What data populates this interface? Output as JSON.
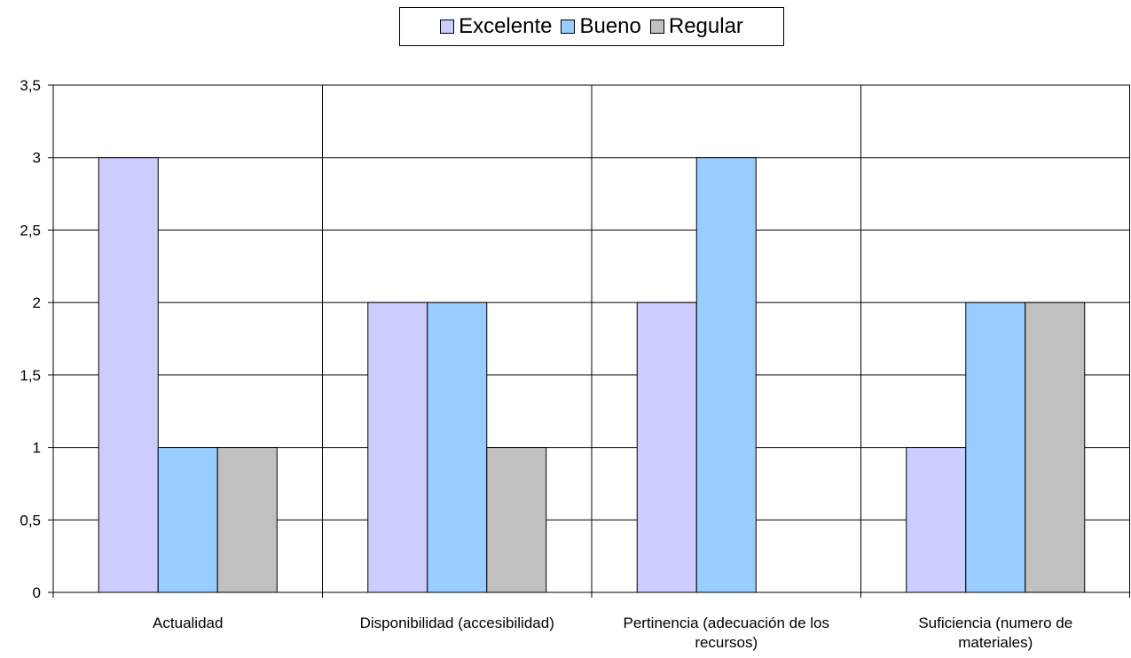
{
  "chart_data": {
    "type": "bar",
    "title": "",
    "xlabel": "",
    "ylabel": "",
    "ylim": [
      0,
      3.5
    ],
    "yticks": [
      "0",
      "0,5",
      "1",
      "1,5",
      "2",
      "2,5",
      "3",
      "3,5"
    ],
    "ytick_values": [
      0,
      0.5,
      1,
      1.5,
      2,
      2.5,
      3,
      3.5
    ],
    "categories": [
      [
        "Actualidad"
      ],
      [
        "Disponibilidad (accesibilidad)"
      ],
      [
        "Pertinencia (adecuación de los",
        "recursos)"
      ],
      [
        "Suficiencia (numero de",
        "materiales)"
      ]
    ],
    "series": [
      {
        "name": "Excelente",
        "color": "#ccccff",
        "values": [
          3,
          2,
          2,
          1
        ]
      },
      {
        "name": "Bueno",
        "color": "#99ccff",
        "values": [
          1,
          2,
          3,
          2
        ]
      },
      {
        "name": "Regular",
        "color": "#c0c0c0",
        "values": [
          1,
          1,
          0,
          2
        ]
      }
    ],
    "grid": true,
    "legend_position": "top-center"
  }
}
